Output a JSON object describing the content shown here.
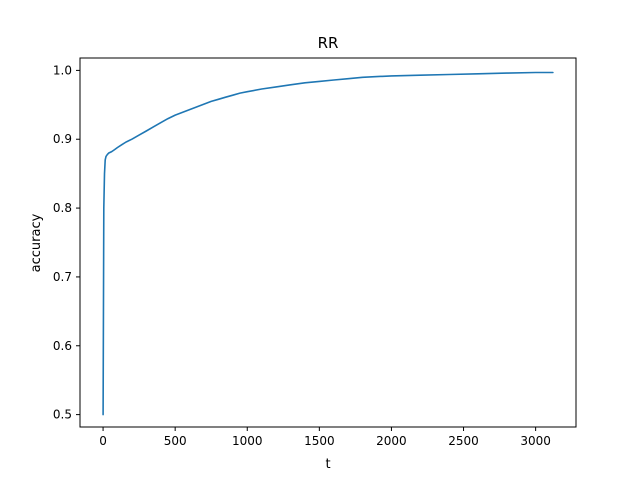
{
  "chart_data": {
    "type": "line",
    "title": "RR",
    "xlabel": "t",
    "ylabel": "accuracy",
    "xlim": [
      -160,
      3280
    ],
    "ylim": [
      0.482,
      1.018
    ],
    "xticks": [
      0,
      500,
      1000,
      1500,
      2000,
      2500,
      3000
    ],
    "xtick_labels": [
      "0",
      "500",
      "1000",
      "1500",
      "2000",
      "2500",
      "3000"
    ],
    "yticks": [
      0.5,
      0.6,
      0.7,
      0.8,
      0.9,
      1.0
    ],
    "ytick_labels": [
      "0.5",
      "0.6",
      "0.7",
      "0.8",
      "0.9",
      "1.0"
    ],
    "grid": false,
    "legend": "none",
    "series": [
      {
        "color": "#1f77b4",
        "x": [
          0,
          5,
          10,
          15,
          20,
          30,
          40,
          60,
          80,
          100,
          130,
          160,
          200,
          250,
          300,
          350,
          400,
          450,
          500,
          550,
          600,
          650,
          700,
          750,
          800,
          850,
          900,
          950,
          1000,
          1100,
          1200,
          1300,
          1400,
          1500,
          1600,
          1700,
          1800,
          1900,
          2000,
          2200,
          2400,
          2600,
          2800,
          3000,
          3120
        ],
        "y": [
          0.5,
          0.8,
          0.85,
          0.87,
          0.875,
          0.878,
          0.88,
          0.882,
          0.885,
          0.888,
          0.892,
          0.896,
          0.9,
          0.906,
          0.912,
          0.918,
          0.924,
          0.93,
          0.935,
          0.939,
          0.943,
          0.947,
          0.951,
          0.955,
          0.958,
          0.961,
          0.964,
          0.967,
          0.969,
          0.973,
          0.976,
          0.979,
          0.982,
          0.984,
          0.986,
          0.988,
          0.99,
          0.991,
          0.992,
          0.993,
          0.994,
          0.995,
          0.996,
          0.997,
          0.997
        ]
      }
    ]
  }
}
